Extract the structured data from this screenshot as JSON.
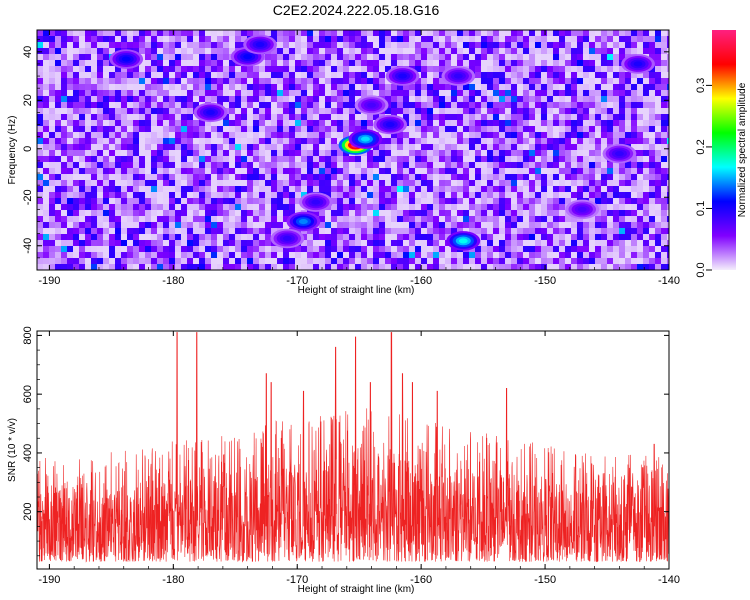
{
  "title": "C2E2.2024.222.05.18.G16",
  "chart_data": [
    {
      "type": "heatmap",
      "x": {
        "label": "Height of straight line (km)",
        "lim": [
          -191,
          -140
        ],
        "ticks": [
          -190,
          -180,
          -170,
          -160,
          -150,
          -140
        ],
        "tick_labels": [
          "-190",
          "-180",
          "-170",
          "-160",
          "-150",
          "-140"
        ]
      },
      "y": {
        "label": "Frequency (Hz)",
        "lim": [
          -50,
          49
        ],
        "ticks": [
          -40,
          -20,
          0,
          20,
          40
        ],
        "tick_labels": [
          "-40",
          "-20",
          "0",
          "20",
          "40"
        ]
      },
      "colorbar": {
        "label": "Normalized spectral amplitude",
        "lim": [
          0,
          0.39
        ],
        "ticks": [
          0.0,
          0.1,
          0.2,
          0.3
        ],
        "tick_labels": [
          "0.0",
          "0.1",
          "0.2",
          "0.3"
        ],
        "colormap": [
          "#f4eefc",
          "#8000ff",
          "#0000ff",
          "#00ffff",
          "#00ff00",
          "#ffff00",
          "#ff0000",
          "#ff2080"
        ]
      },
      "background_level": 0.06,
      "peaks": [
        {
          "x": -165.3,
          "y": 1.5,
          "value": 0.38
        },
        {
          "x": -164.5,
          "y": 4,
          "value": 0.16
        },
        {
          "x": -162.5,
          "y": 10,
          "value": 0.1
        },
        {
          "x": -164,
          "y": 18,
          "value": 0.08
        },
        {
          "x": -168.5,
          "y": -22,
          "value": 0.09
        },
        {
          "x": -169.5,
          "y": -30,
          "value": 0.14
        },
        {
          "x": -170.8,
          "y": -37,
          "value": 0.09
        },
        {
          "x": -156.6,
          "y": -38,
          "value": 0.17
        },
        {
          "x": -183.8,
          "y": 37,
          "value": 0.11
        },
        {
          "x": -174,
          "y": 38,
          "value": 0.11
        },
        {
          "x": -173,
          "y": 43,
          "value": 0.1
        },
        {
          "x": -177,
          "y": 15,
          "value": 0.1
        },
        {
          "x": -161.5,
          "y": 30,
          "value": 0.1
        },
        {
          "x": -157,
          "y": 30,
          "value": 0.09
        },
        {
          "x": -142.5,
          "y": 35,
          "value": 0.1
        },
        {
          "x": -144,
          "y": -2,
          "value": 0.09
        },
        {
          "x": -147,
          "y": -25,
          "value": 0.08
        }
      ]
    },
    {
      "type": "line",
      "color": "#ee2222",
      "x": {
        "label": "Height of straight line (km)",
        "lim": [
          -191,
          -140
        ],
        "ticks": [
          -190,
          -180,
          -170,
          -160,
          -150,
          -140
        ],
        "tick_labels": [
          "-190",
          "-180",
          "-170",
          "-160",
          "-150",
          "-140"
        ]
      },
      "y": {
        "label": "SNR (10 * v/v)",
        "lim": [
          5,
          815
        ],
        "ticks": [
          200,
          400,
          600,
          800
        ],
        "tick_labels": [
          "200",
          "400",
          "600",
          "800"
        ]
      },
      "baseline": 150,
      "noise_min": 30,
      "envelope": [
        {
          "x": -191,
          "top": 380
        },
        {
          "x": -185,
          "top": 410
        },
        {
          "x": -180,
          "top": 440
        },
        {
          "x": -175,
          "top": 470
        },
        {
          "x": -170,
          "top": 530
        },
        {
          "x": -165,
          "top": 560
        },
        {
          "x": -162,
          "top": 570
        },
        {
          "x": -158,
          "top": 500
        },
        {
          "x": -153,
          "top": 450
        },
        {
          "x": -148,
          "top": 420
        },
        {
          "x": -144,
          "top": 400
        },
        {
          "x": -140,
          "top": 390
        }
      ],
      "peaks": [
        {
          "x": -179.7,
          "y": 810
        },
        {
          "x": -178.1,
          "y": 810
        },
        {
          "x": -172.5,
          "y": 670
        },
        {
          "x": -172.1,
          "y": 640
        },
        {
          "x": -169.5,
          "y": 610
        },
        {
          "x": -166.9,
          "y": 760
        },
        {
          "x": -165.3,
          "y": 795
        },
        {
          "x": -164.1,
          "y": 640
        },
        {
          "x": -162.4,
          "y": 810
        },
        {
          "x": -161.5,
          "y": 670
        },
        {
          "x": -160.7,
          "y": 640
        },
        {
          "x": -158.7,
          "y": 610
        },
        {
          "x": -153.1,
          "y": 620
        },
        {
          "x": -141.2,
          "y": 430
        }
      ]
    }
  ]
}
